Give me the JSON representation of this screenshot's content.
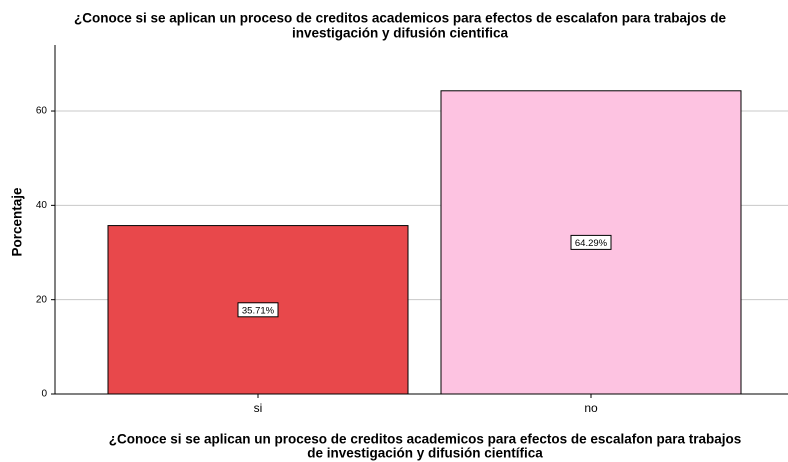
{
  "chart_data": {
    "type": "bar",
    "title": [
      "¿Conoce si se aplican un proceso de creditos academicos para efectos de escalafon para trabajos de",
      "investigación y difusión cientifica"
    ],
    "x_label": [
      "¿Conoce si se aplican un proceso de creditos academicos para efectos de escalafon para trabajos",
      "de investigación y difusión científica"
    ],
    "y_label": "Porcentaje",
    "categories": [
      "si",
      "no"
    ],
    "values": [
      35.71,
      64.29
    ],
    "value_labels": [
      "35.71%",
      "64.29%"
    ],
    "colors": [
      "#e8484b",
      "#fdc3e1"
    ],
    "ylim": [
      0,
      74
    ],
    "yticks": [
      0,
      20,
      40,
      60
    ],
    "grid": true
  }
}
